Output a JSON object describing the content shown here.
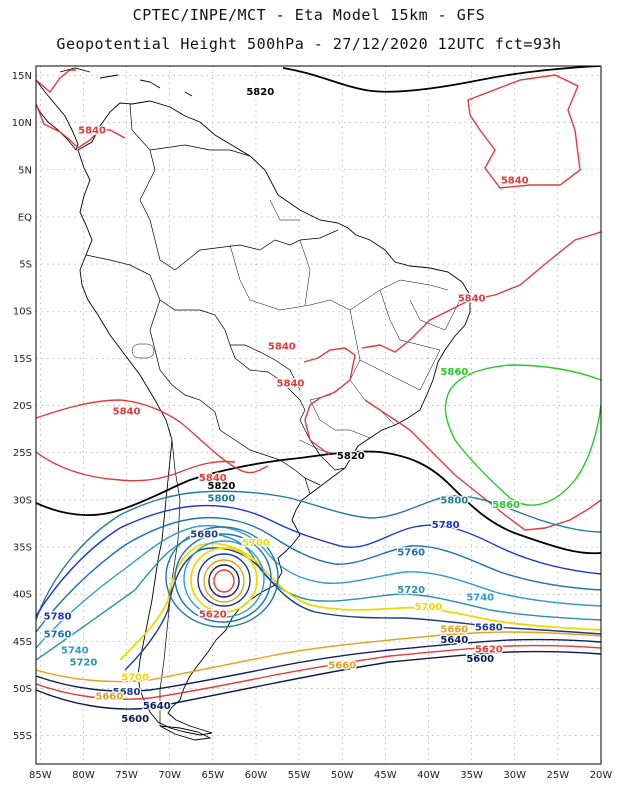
{
  "header": {
    "line1": "CPTEC/INPE/MCT -  Eta Model 15km - GFS",
    "line2": "Geopotential Height 500hPa - 27/12/2020 12UTC fct=93h"
  },
  "axes": {
    "lat_labels": [
      "15N",
      "10N",
      "5N",
      "EQ",
      "5S",
      "10S",
      "15S",
      "20S",
      "25S",
      "30S",
      "35S",
      "40S",
      "45S",
      "50S",
      "55S"
    ],
    "lon_labels": [
      "85W",
      "80W",
      "75W",
      "70W",
      "65W",
      "60W",
      "55W",
      "50W",
      "45W",
      "40W",
      "35W",
      "30W",
      "25W",
      "20W"
    ],
    "lat_range": [
      16,
      -58
    ],
    "lon_range": [
      -85.5,
      -20
    ],
    "grid": "dotted"
  },
  "contours": [
    {
      "level": "5820",
      "color": "#000000",
      "labels": [
        {
          "text": "5820",
          "lon": -59.5,
          "lat": 13.3
        },
        {
          "text": "5820",
          "lon": -49,
          "lat": -25.3
        },
        {
          "text": "5820",
          "lon": -64,
          "lat": -28.5
        }
      ]
    },
    {
      "level": "5840",
      "color": "#e23a3a",
      "labels": [
        {
          "text": "5840",
          "lon": -79,
          "lat": 9.2
        },
        {
          "text": "5840",
          "lon": -30,
          "lat": 3.9
        },
        {
          "text": "5840",
          "lon": -35,
          "lat": -8.6
        },
        {
          "text": "5840",
          "lon": -57,
          "lat": -13.7
        },
        {
          "text": "5840",
          "lon": -56,
          "lat": -17.6
        },
        {
          "text": "5840",
          "lon": -75,
          "lat": -20.6
        },
        {
          "text": "5840",
          "lon": -65,
          "lat": -27.6
        }
      ]
    },
    {
      "level": "5860",
      "color": "#22cc22",
      "labels": [
        {
          "text": "5860",
          "lon": -37,
          "lat": -16.4
        },
        {
          "text": "5860",
          "lon": -31,
          "lat": -30.5
        }
      ]
    },
    {
      "level": "5800",
      "color": "#1f7a9a",
      "labels": [
        {
          "text": "5800",
          "lon": -64,
          "lat": -29.8
        },
        {
          "text": "5800",
          "lon": -37,
          "lat": -30.0
        }
      ]
    },
    {
      "level": "5780",
      "color": "#1a33d6",
      "labels": [
        {
          "text": "5780",
          "lon": -83,
          "lat": -42.3
        },
        {
          "text": "5780",
          "lon": -38,
          "lat": -32.6
        }
      ]
    },
    {
      "level": "5760",
      "color": "#1a73b8",
      "labels": [
        {
          "text": "5760",
          "lon": -83,
          "lat": -44.2
        },
        {
          "text": "5760",
          "lon": -42,
          "lat": -35.5
        }
      ]
    },
    {
      "level": "5740",
      "color": "#2f9ad0",
      "labels": [
        {
          "text": "5740",
          "lon": -81,
          "lat": -45.9
        },
        {
          "text": "5740",
          "lon": -34,
          "lat": -40.3
        }
      ]
    },
    {
      "level": "5720",
      "color": "#2a8fa8",
      "labels": [
        {
          "text": "5720",
          "lon": -80,
          "lat": -47.2
        },
        {
          "text": "5720",
          "lon": -42,
          "lat": -39.5
        }
      ]
    },
    {
      "level": "5700",
      "color": "#f0d800",
      "labels": [
        {
          "text": "5700",
          "lon": -40,
          "lat": -41.3
        },
        {
          "text": "5700",
          "lon": -60,
          "lat": -34.5
        },
        {
          "text": "5700",
          "lon": -74,
          "lat": -48.8
        }
      ]
    },
    {
      "level": "5680",
      "color": "#1a3a8a",
      "labels": [
        {
          "text": "5680",
          "lon": -33,
          "lat": -43.5
        },
        {
          "text": "5680",
          "lon": -75,
          "lat": -50.3
        },
        {
          "text": "5680",
          "lon": -66,
          "lat": -33.6
        }
      ]
    },
    {
      "level": "5660",
      "color": "#e6a020",
      "labels": [
        {
          "text": "5660",
          "lon": -50,
          "lat": -47.5
        },
        {
          "text": "5660",
          "lon": -37,
          "lat": -43.7
        },
        {
          "text": "5660",
          "lon": -77,
          "lat": -50.8
        }
      ]
    },
    {
      "level": "5640",
      "color": "#0a2060",
      "labels": [
        {
          "text": "5640",
          "lon": -37,
          "lat": -44.8
        },
        {
          "text": "5640",
          "lon": -71.5,
          "lat": -51.8
        }
      ]
    },
    {
      "level": "5620",
      "color": "#e23a3a",
      "labels": [
        {
          "text": "5620",
          "lon": -33,
          "lat": -45.8
        },
        {
          "text": "5620",
          "lon": -65,
          "lat": -42.1
        }
      ]
    },
    {
      "level": "5600",
      "color": "#0a1a50",
      "labels": [
        {
          "text": "5600",
          "lon": -34,
          "lat": -46.8
        },
        {
          "text": "5600",
          "lon": -74,
          "lat": -53.2
        }
      ]
    }
  ]
}
